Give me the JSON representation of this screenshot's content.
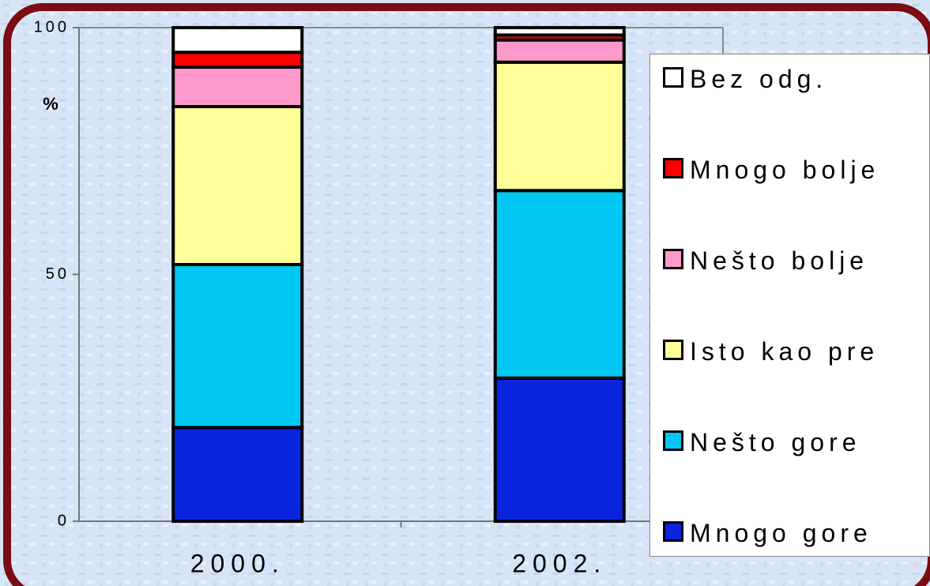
{
  "chart_data": {
    "type": "stacked_bar",
    "y_label": "%",
    "categories": [
      "2000.",
      "2002."
    ],
    "series": [
      {
        "name": "Mnogo gore",
        "color": "#0a24e0",
        "values": [
          19,
          29
        ]
      },
      {
        "name": "Nešto gore",
        "color": "#00c8f2",
        "values": [
          33,
          38
        ]
      },
      {
        "name": "Isto kao pre",
        "color": "#ffff99",
        "values": [
          32,
          26
        ]
      },
      {
        "name": "Nešto bolje",
        "color": "#ff99cc",
        "values": [
          8,
          4.5
        ]
      },
      {
        "name": "Mnogo bolje",
        "color": "#ff0000",
        "values": [
          3,
          1
        ]
      },
      {
        "name": "Bez odg.",
        "color": "#ffffff",
        "values": [
          5,
          1.5
        ]
      }
    ],
    "ylim": [
      0,
      100
    ],
    "yticks": [
      0,
      50,
      100
    ]
  }
}
